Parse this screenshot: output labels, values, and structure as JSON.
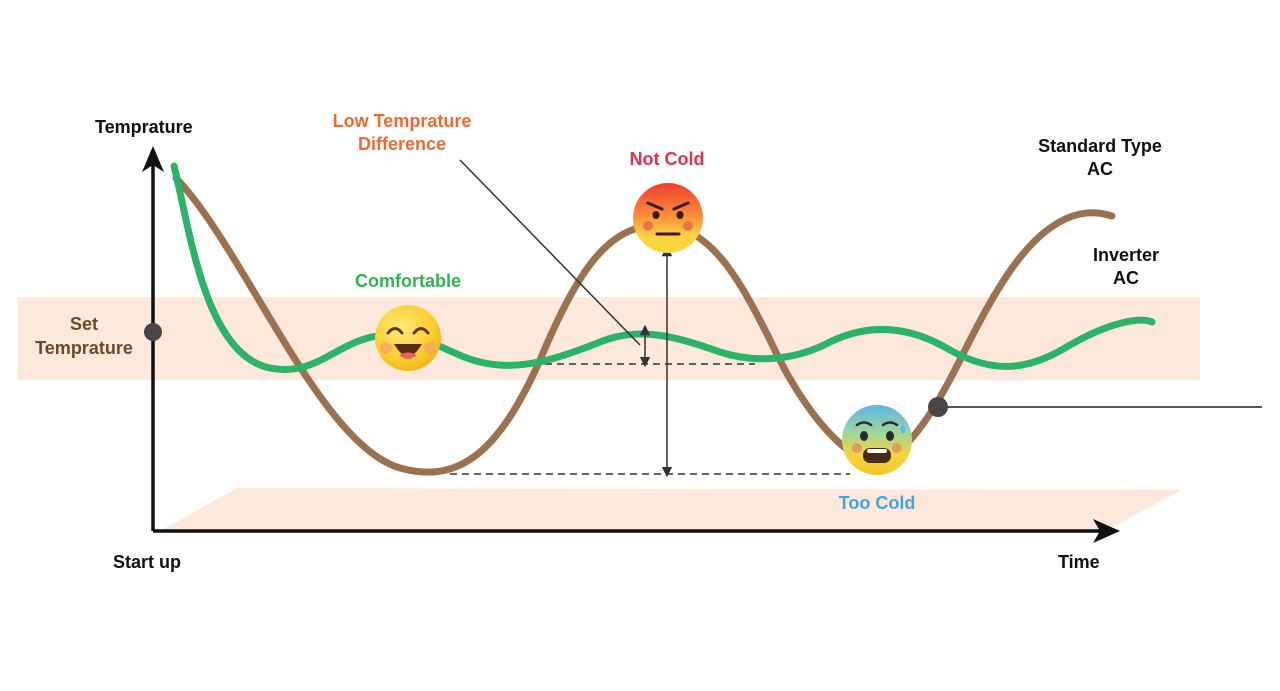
{
  "axes": {
    "y_label": "Temprature",
    "x_label": "Time",
    "origin_label": "Start up"
  },
  "set_temperature": {
    "line1": "Set",
    "line2": "Temprature"
  },
  "curves": {
    "standard": {
      "line1": "Standard Type",
      "line2": "AC",
      "color": "#9c7150"
    },
    "inverter": {
      "line1": "Inverter",
      "line2": "AC",
      "color": "#2cb36a"
    }
  },
  "annotations": {
    "low_diff": {
      "line1": "Low Temprature",
      "line2": "Difference",
      "color": "#ec6a33"
    },
    "not_cold": {
      "text": "Not Cold",
      "color": "#ea2e4d"
    },
    "comfortable": {
      "text": "Comfortable",
      "color": "#33b34f"
    },
    "too_cold": {
      "text": "Too Cold",
      "color": "#48a4e0"
    }
  },
  "icons": {
    "comfortable": "laughing-face-icon",
    "not_cold": "angry-face-icon",
    "too_cold": "freezing-face-icon"
  },
  "colors": {
    "band": "#fde9dc",
    "axis": "#111111",
    "label_dark": "#111111",
    "set_label": "#6b4a2a"
  }
}
